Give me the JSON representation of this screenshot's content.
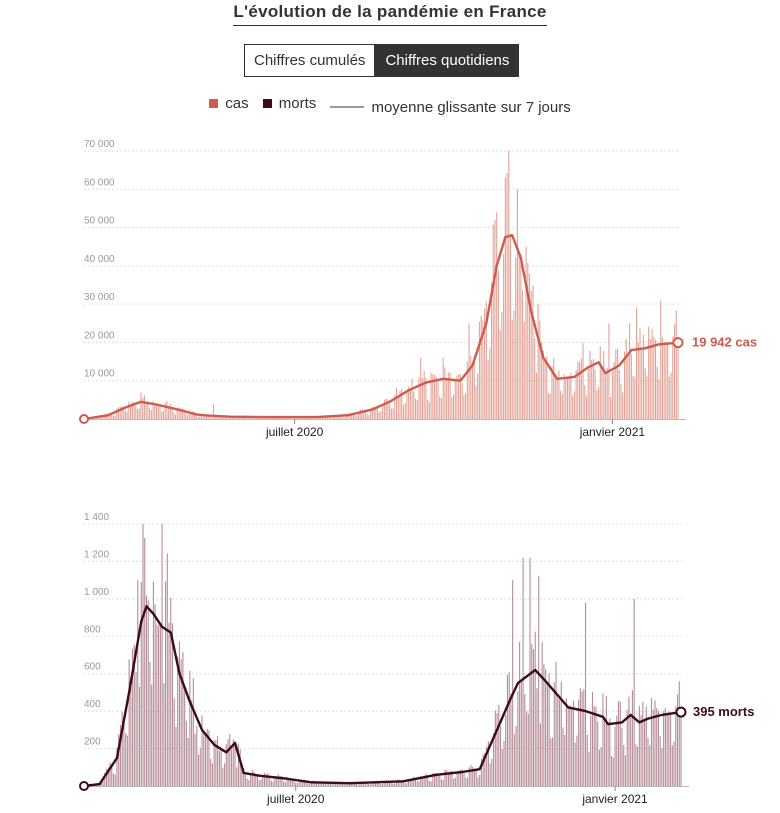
{
  "page": {
    "title": "L'évolution de la pandémie en France",
    "toggle": {
      "cumulative_label": "Chiffres cumulés",
      "daily_label": "Chiffres quotidiens",
      "active": "daily"
    },
    "legend": {
      "cases_label": "cas",
      "deaths_label": "morts",
      "average_label": "moyenne glissante sur 7 jours"
    }
  },
  "colors": {
    "cases": "#cd5c4e",
    "cases_bars": "#e3a398",
    "deaths": "#3d0c19",
    "deaths_bars": "#b48d96",
    "grid": "#dddddd",
    "axis": "#bbbbbb",
    "average_legend": "#999999"
  },
  "chart_data": [
    {
      "type": "bar",
      "series_name": "cas",
      "x_axis": {
        "start": "2020-03-01",
        "end": "2021-02-08",
        "ticks": [
          "juillet 2020",
          "janvier 2021"
        ],
        "tick_dates": [
          "2020-07-01",
          "2021-01-01"
        ]
      },
      "ylim": [
        0,
        70000
      ],
      "yticks": [
        10000,
        20000,
        30000,
        40000,
        50000,
        60000,
        70000
      ],
      "ytick_labels": [
        "10 000",
        "20 000",
        "30 000",
        "40 000",
        "50 000",
        "60 000",
        "70 000"
      ],
      "grid": true,
      "average_7d": [
        [
          "2020-03-01",
          0
        ],
        [
          "2020-03-15",
          1000
        ],
        [
          "2020-03-25",
          3000
        ],
        [
          "2020-04-03",
          4500
        ],
        [
          "2020-04-12",
          3800
        ],
        [
          "2020-04-25",
          2400
        ],
        [
          "2020-05-05",
          1200
        ],
        [
          "2020-05-12",
          900
        ],
        [
          "2020-05-25",
          600
        ],
        [
          "2020-06-15",
          500
        ],
        [
          "2020-07-15",
          550
        ],
        [
          "2020-08-01",
          1000
        ],
        [
          "2020-08-15",
          2500
        ],
        [
          "2020-08-25",
          4500
        ],
        [
          "2020-09-05",
          7500
        ],
        [
          "2020-09-15",
          9500
        ],
        [
          "2020-09-25",
          10500
        ],
        [
          "2020-10-05",
          10000
        ],
        [
          "2020-10-12",
          14000
        ],
        [
          "2020-10-20",
          25000
        ],
        [
          "2020-10-26",
          40000
        ],
        [
          "2020-10-31",
          47500
        ],
        [
          "2020-11-04",
          48000
        ],
        [
          "2020-11-09",
          42000
        ],
        [
          "2020-11-15",
          28000
        ],
        [
          "2020-11-22",
          16000
        ],
        [
          "2020-11-30",
          10500
        ],
        [
          "2020-12-10",
          11000
        ],
        [
          "2020-12-18",
          13500
        ],
        [
          "2020-12-24",
          14800
        ],
        [
          "2020-12-28",
          12000
        ],
        [
          "2021-01-05",
          14000
        ],
        [
          "2021-01-12",
          18000
        ],
        [
          "2021-01-20",
          18500
        ],
        [
          "2021-01-28",
          19500
        ],
        [
          "2021-02-08",
          19942
        ]
      ],
      "peaks": [
        [
          "2020-04-03",
          7000
        ],
        [
          "2020-04-20",
          4000
        ],
        [
          "2020-05-15",
          4000
        ],
        [
          "2020-09-12",
          16000
        ],
        [
          "2020-09-25",
          16000
        ],
        [
          "2020-10-10",
          25000
        ],
        [
          "2020-10-25",
          52000
        ],
        [
          "2020-10-31",
          63000
        ],
        [
          "2020-11-02",
          70000
        ],
        [
          "2020-11-07",
          60000
        ],
        [
          "2020-11-12",
          45000
        ],
        [
          "2020-11-19",
          30000
        ],
        [
          "2020-12-15",
          20000
        ],
        [
          "2020-12-30",
          25000
        ],
        [
          "2021-01-11",
          25000
        ],
        [
          "2021-01-15",
          29000
        ],
        [
          "2021-01-29",
          31000
        ]
      ],
      "last_value_label": "19 942 cas"
    },
    {
      "type": "bar",
      "series_name": "morts",
      "x_axis": {
        "start": "2020-03-01",
        "end": "2021-02-08",
        "ticks": [
          "juillet 2020",
          "janvier 2021"
        ],
        "tick_dates": [
          "2020-07-01",
          "2021-01-01"
        ]
      },
      "ylim": [
        0,
        1400
      ],
      "yticks": [
        200,
        400,
        600,
        800,
        1000,
        1200,
        1400
      ],
      "ytick_labels": [
        "200",
        "400",
        "600",
        "800",
        "1 000",
        "1 200",
        "1 400"
      ],
      "grid": true,
      "average_7d": [
        [
          "2020-03-01",
          0
        ],
        [
          "2020-03-10",
          10
        ],
        [
          "2020-03-20",
          150
        ],
        [
          "2020-03-27",
          500
        ],
        [
          "2020-04-03",
          880
        ],
        [
          "2020-04-06",
          960
        ],
        [
          "2020-04-10",
          920
        ],
        [
          "2020-04-15",
          850
        ],
        [
          "2020-04-20",
          820
        ],
        [
          "2020-04-25",
          600
        ],
        [
          "2020-05-01",
          450
        ],
        [
          "2020-05-08",
          300
        ],
        [
          "2020-05-15",
          220
        ],
        [
          "2020-05-22",
          180
        ],
        [
          "2020-05-27",
          230
        ],
        [
          "2020-06-01",
          70
        ],
        [
          "2020-06-10",
          55
        ],
        [
          "2020-06-25",
          40
        ],
        [
          "2020-07-10",
          20
        ],
        [
          "2020-08-01",
          15
        ],
        [
          "2020-09-01",
          25
        ],
        [
          "2020-09-20",
          60
        ],
        [
          "2020-10-05",
          75
        ],
        [
          "2020-10-15",
          90
        ],
        [
          "2020-10-25",
          300
        ],
        [
          "2020-11-01",
          450
        ],
        [
          "2020-11-06",
          550
        ],
        [
          "2020-11-16",
          620
        ],
        [
          "2020-11-22",
          560
        ],
        [
          "2020-12-05",
          420
        ],
        [
          "2020-12-15",
          400
        ],
        [
          "2020-12-25",
          370
        ],
        [
          "2020-12-28",
          330
        ],
        [
          "2021-01-05",
          340
        ],
        [
          "2021-01-10",
          380
        ],
        [
          "2021-01-15",
          340
        ],
        [
          "2021-01-20",
          360
        ],
        [
          "2021-01-28",
          380
        ],
        [
          "2021-02-08",
          395
        ]
      ],
      "peaks": [
        [
          "2020-04-01",
          1100
        ],
        [
          "2020-04-04",
          1400
        ],
        [
          "2020-04-15",
          1440
        ],
        [
          "2020-05-04",
          280
        ],
        [
          "2020-05-27",
          240
        ],
        [
          "2020-11-03",
          1100
        ],
        [
          "2020-11-09",
          1220
        ],
        [
          "2020-11-13",
          1220
        ],
        [
          "2020-11-18",
          1120
        ],
        [
          "2020-12-15",
          980
        ],
        [
          "2021-01-12",
          1000
        ]
      ],
      "last_value_label": "395 morts"
    }
  ]
}
